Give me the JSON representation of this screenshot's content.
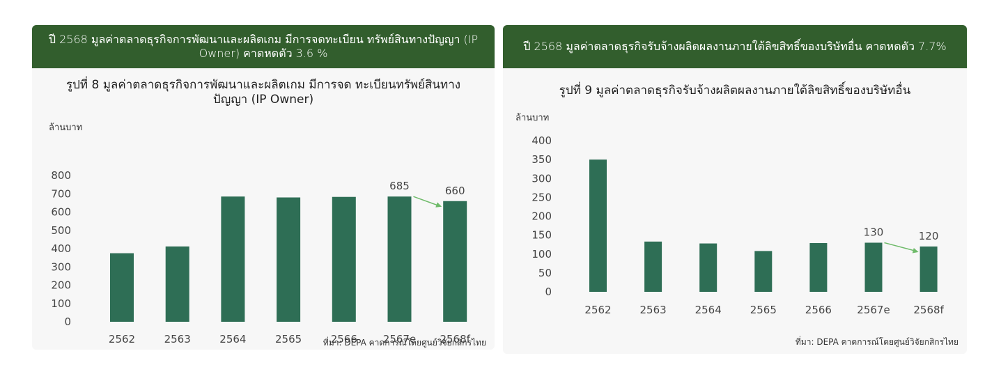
{
  "colors": {
    "banner": "#325e2d",
    "bar": "#2e6e55",
    "arrow": "#6fbb6a"
  },
  "chart_data": [
    {
      "type": "bar",
      "banner": "ปี 2568 มูลค่าตลาดธุรกิจการพัฒนาและผลิตเกม มีการจดทะเบียน ทรัพย์สินทางปัญญา (IP Owner) คาดหดตัว 3.6 %",
      "title": "รูปที่ 8  มูลค่าตลาดธุรกิจการพัฒนาและผลิตเกม มีการจด ทะเบียนทรัพย์สินทางปัญญา (IP Owner)",
      "ylabel": "ล้านบาท",
      "source": "ที่มา: DEPA คาดการณ์โดยศูนย์วิจัยกสิกรไทย",
      "categories": [
        "2562",
        "2563",
        "2564",
        "2565",
        "2566",
        "2567e",
        "2568f"
      ],
      "values": [
        375,
        412,
        685,
        680,
        683,
        685,
        660
      ],
      "data_labels": [
        "",
        "",
        "",
        "",
        "",
        "685",
        "660"
      ],
      "ylim": [
        0,
        800
      ],
      "yticks": [
        "0",
        "100",
        "200",
        "300",
        "400",
        "500",
        "600",
        "700",
        "800"
      ],
      "grid": false,
      "annotation": "arrow from 2567e to 2568f"
    },
    {
      "type": "bar",
      "banner": "ปี 2568 มูลค่าตลาดธุรกิจรับจ้างผลิตผลงานภายใต้ลิขสิทธิ์ของบริษัทอื่น คาดหดตัว 7.7%",
      "title": "รูปที่ 9 มูลค่าตลาดธุรกิจรับจ้างผลิตผลงานภายใต้ลิขสิทธิ์ของบริษัทอื่น",
      "ylabel": "ล้านบาท",
      "source": "ที่มา: DEPA คาดการณ์โดยศูนย์วิจัยกสิกรไทย",
      "categories": [
        "2562",
        "2563",
        "2564",
        "2565",
        "2566",
        "2567e",
        "2568f"
      ],
      "values": [
        350,
        133,
        128,
        108,
        129,
        130,
        120
      ],
      "data_labels": [
        "",
        "",
        "",
        "",
        "",
        "130",
        "120"
      ],
      "ylim": [
        0,
        400
      ],
      "yticks": [
        "0",
        "50",
        "100",
        "150",
        "200",
        "250",
        "300",
        "350",
        "400"
      ],
      "grid": false,
      "annotation": "arrow from 2567e to 2568f"
    }
  ]
}
